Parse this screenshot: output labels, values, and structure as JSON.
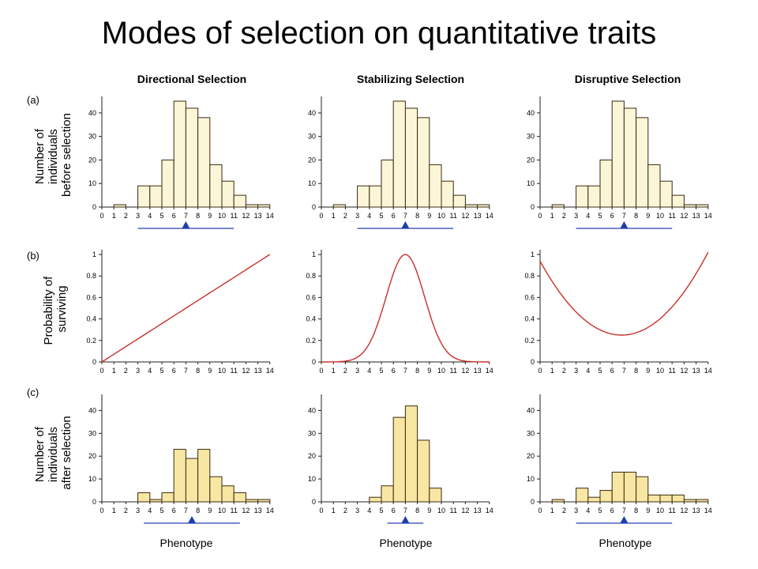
{
  "title": "Modes of selection on quantitative traits",
  "columns": [
    "Directional Selection",
    "Stabilizing Selection",
    "Disruptive Selection"
  ],
  "rows": [
    {
      "label": "(a)",
      "ylabel": [
        "Number of",
        "individuals",
        "before selection"
      ]
    },
    {
      "label": "(b)",
      "ylabel": [
        "Probability of",
        "surviving"
      ]
    },
    {
      "label": "(c)",
      "ylabel": [
        "Number of",
        "individuals",
        "after selection"
      ]
    }
  ],
  "xlabel": "Phenotype",
  "colors": {
    "bar_before": "#fbf6d8",
    "bar_after": "#f8e6a3",
    "bar_stroke": "#3a2a10",
    "curve": "#c8302a",
    "mean_line": "#2a3fb0",
    "mean_marker": "#1f3fa8"
  },
  "chart_data": [
    {
      "type": "bar",
      "row": "a",
      "column": "Directional Selection",
      "x": [
        0,
        1,
        2,
        3,
        4,
        5,
        6,
        7,
        8,
        9,
        10,
        11,
        12,
        13
      ],
      "values": [
        0,
        1,
        0,
        9,
        9,
        20,
        45,
        42,
        38,
        18,
        11,
        5,
        1,
        1
      ],
      "ylim": [
        0,
        45
      ],
      "yticks": [
        0,
        10,
        20,
        30,
        40
      ],
      "xticks": [
        0,
        1,
        2,
        3,
        4,
        5,
        6,
        7,
        8,
        9,
        10,
        11,
        12,
        13,
        14
      ],
      "mean": 7,
      "mean_range": [
        3,
        11
      ]
    },
    {
      "type": "bar",
      "row": "a",
      "column": "Stabilizing Selection",
      "x": [
        0,
        1,
        2,
        3,
        4,
        5,
        6,
        7,
        8,
        9,
        10,
        11,
        12,
        13
      ],
      "values": [
        0,
        1,
        0,
        9,
        9,
        20,
        45,
        42,
        38,
        18,
        11,
        5,
        1,
        1
      ],
      "ylim": [
        0,
        45
      ],
      "yticks": [
        0,
        10,
        20,
        30,
        40
      ],
      "xticks": [
        0,
        1,
        2,
        3,
        4,
        5,
        6,
        7,
        8,
        9,
        10,
        11,
        12,
        13,
        14
      ],
      "mean": 7,
      "mean_range": [
        3,
        11
      ]
    },
    {
      "type": "bar",
      "row": "a",
      "column": "Disruptive Selection",
      "x": [
        0,
        1,
        2,
        3,
        4,
        5,
        6,
        7,
        8,
        9,
        10,
        11,
        12,
        13
      ],
      "values": [
        0,
        1,
        0,
        9,
        9,
        20,
        45,
        42,
        38,
        18,
        11,
        5,
        1,
        1
      ],
      "ylim": [
        0,
        45
      ],
      "yticks": [
        0,
        10,
        20,
        30,
        40
      ],
      "xticks": [
        0,
        1,
        2,
        3,
        4,
        5,
        6,
        7,
        8,
        9,
        10,
        11,
        12,
        13,
        14
      ],
      "mean": 7,
      "mean_range": [
        3,
        11
      ]
    },
    {
      "type": "line",
      "row": "b",
      "column": "Directional Selection",
      "curve": "directional",
      "ylim": [
        0,
        1
      ],
      "yticks": [
        0,
        0.2,
        0.4,
        0.6,
        0.8,
        1
      ],
      "xticks": [
        0,
        1,
        2,
        3,
        4,
        5,
        6,
        7,
        8,
        9,
        10,
        11,
        12,
        13,
        14
      ]
    },
    {
      "type": "line",
      "row": "b",
      "column": "Stabilizing Selection",
      "curve": "stabilizing",
      "ylim": [
        0,
        1
      ],
      "yticks": [
        0,
        0.2,
        0.4,
        0.6,
        0.8,
        1
      ],
      "xticks": [
        0,
        1,
        2,
        3,
        4,
        5,
        6,
        7,
        8,
        9,
        10,
        11,
        12,
        13,
        14
      ]
    },
    {
      "type": "line",
      "row": "b",
      "column": "Disruptive Selection",
      "curve": "disruptive",
      "ylim": [
        0,
        1
      ],
      "yticks": [
        0,
        0.2,
        0.4,
        0.6,
        0.8,
        1
      ],
      "xticks": [
        0,
        1,
        2,
        3,
        4,
        5,
        6,
        7,
        8,
        9,
        10,
        11,
        12,
        13,
        14
      ]
    },
    {
      "type": "bar",
      "row": "c",
      "column": "Directional Selection",
      "x": [
        0,
        1,
        2,
        3,
        4,
        5,
        6,
        7,
        8,
        9,
        10,
        11,
        12,
        13
      ],
      "values": [
        0,
        0,
        0,
        4,
        1,
        4,
        23,
        19,
        23,
        11,
        7,
        4,
        1,
        1
      ],
      "ylim": [
        0,
        45
      ],
      "yticks": [
        0,
        10,
        20,
        30,
        40
      ],
      "xticks": [
        0,
        1,
        2,
        3,
        4,
        5,
        6,
        7,
        8,
        9,
        10,
        11,
        12,
        13,
        14
      ],
      "mean": 7.5,
      "mean_range": [
        3.5,
        11.5
      ]
    },
    {
      "type": "bar",
      "row": "c",
      "column": "Stabilizing Selection",
      "x": [
        0,
        1,
        2,
        3,
        4,
        5,
        6,
        7,
        8,
        9,
        10,
        11,
        12,
        13
      ],
      "values": [
        0,
        0,
        0,
        0,
        2,
        7,
        37,
        42,
        27,
        6,
        0,
        0,
        0,
        0
      ],
      "ylim": [
        0,
        45
      ],
      "yticks": [
        0,
        10,
        20,
        30,
        40
      ],
      "xticks": [
        0,
        1,
        2,
        3,
        4,
        5,
        6,
        7,
        8,
        9,
        10,
        11,
        12,
        13,
        14
      ],
      "mean": 7,
      "mean_range": [
        5.5,
        8.5
      ]
    },
    {
      "type": "bar",
      "row": "c",
      "column": "Disruptive Selection",
      "x": [
        0,
        1,
        2,
        3,
        4,
        5,
        6,
        7,
        8,
        9,
        10,
        11,
        12,
        13
      ],
      "values": [
        0,
        1,
        0,
        6,
        2,
        5,
        13,
        13,
        11,
        3,
        3,
        3,
        1,
        1
      ],
      "ylim": [
        0,
        45
      ],
      "yticks": [
        0,
        10,
        20,
        30,
        40
      ],
      "xticks": [
        0,
        1,
        2,
        3,
        4,
        5,
        6,
        7,
        8,
        9,
        10,
        11,
        12,
        13,
        14
      ],
      "mean": 7,
      "mean_range": [
        3,
        11
      ]
    }
  ]
}
